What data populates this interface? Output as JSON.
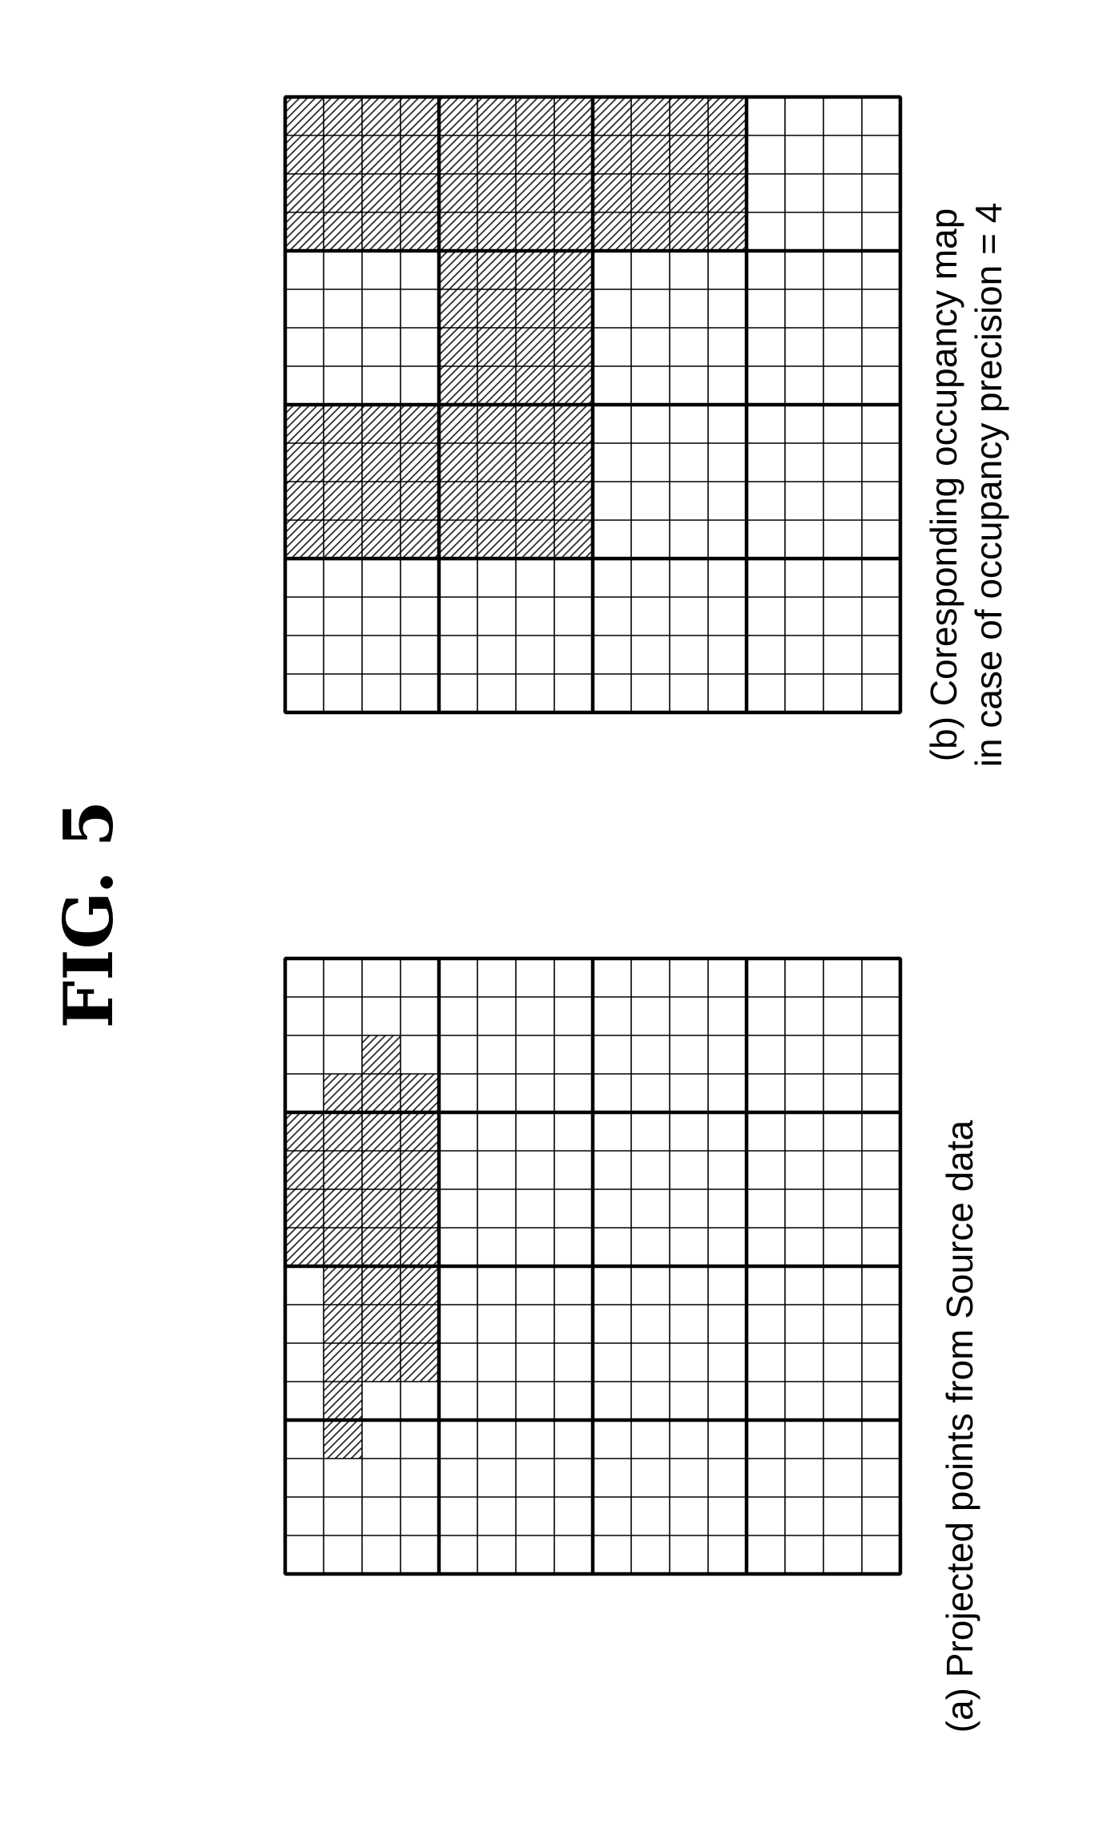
{
  "figure": {
    "title": "FIG. 5",
    "grid_size": 16,
    "block_size": 4,
    "hatch_color": "#000000"
  },
  "panel_a": {
    "caption": "(a) Projected points from Source data",
    "occupied_cells": [
      [
        4,
        0
      ],
      [
        5,
        0
      ],
      [
        6,
        0
      ],
      [
        7,
        0
      ],
      [
        3,
        1
      ],
      [
        4,
        1
      ],
      [
        5,
        1
      ],
      [
        6,
        1
      ],
      [
        7,
        1
      ],
      [
        8,
        1
      ],
      [
        9,
        1
      ],
      [
        10,
        1
      ],
      [
        11,
        1
      ],
      [
        12,
        1
      ],
      [
        2,
        2
      ],
      [
        3,
        2
      ],
      [
        4,
        2
      ],
      [
        5,
        2
      ],
      [
        6,
        2
      ],
      [
        7,
        2
      ],
      [
        8,
        2
      ],
      [
        9,
        2
      ],
      [
        10,
        2
      ],
      [
        3,
        3
      ],
      [
        4,
        3
      ],
      [
        5,
        3
      ],
      [
        6,
        3
      ],
      [
        7,
        3
      ],
      [
        8,
        3
      ],
      [
        9,
        3
      ],
      [
        10,
        3
      ]
    ]
  },
  "panel_b": {
    "caption_line1": "(b) Coresponding occupancy map",
    "caption_line2": "in case of occupancy precision = 4",
    "occupied_blocks": [
      [
        0,
        0
      ],
      [
        0,
        1
      ],
      [
        0,
        2
      ],
      [
        1,
        1
      ],
      [
        2,
        0
      ],
      [
        2,
        1
      ]
    ]
  }
}
